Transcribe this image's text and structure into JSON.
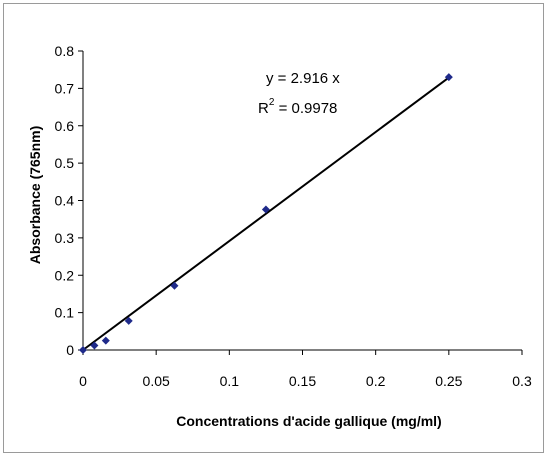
{
  "chart_data": {
    "type": "scatter",
    "xlabel": "Concentrations d'acide gallique (mg/ml)",
    "ylabel": "Absorbance (765nm)",
    "xlim": [
      0,
      0.3
    ],
    "ylim": [
      0,
      0.8
    ],
    "xticks": [
      0,
      0.05,
      0.1,
      0.15,
      0.2,
      0.25,
      0.3
    ],
    "xtick_labels": [
      "0",
      "0.05",
      "0.1",
      "0.15",
      "0.2",
      "0.25",
      "0.3"
    ],
    "yticks": [
      0,
      0.1,
      0.2,
      0.3,
      0.4,
      0.5,
      0.6,
      0.7,
      0.8
    ],
    "ytick_labels": [
      "0",
      "0.1",
      "0.2",
      "0.3",
      "0.4",
      "0.5",
      "0.6",
      "0.7",
      "0.8"
    ],
    "grid": false,
    "series": [
      {
        "x": [
          0,
          0.0078,
          0.0156,
          0.03125,
          0.0625,
          0.125,
          0.25
        ],
        "y": [
          0.0,
          0.012,
          0.025,
          0.078,
          0.172,
          0.376,
          0.73
        ],
        "marker": "diamond",
        "color": "#1f2a8a"
      }
    ],
    "trendline": {
      "slope": 2.916,
      "intercept": 0,
      "x_range": [
        0,
        0.25
      ],
      "color": "#000000"
    },
    "annotation": {
      "equation": "y = 2.916 x",
      "r2_prefix": "R",
      "r2_sup": "2",
      "r2_value": " = 0.9978"
    }
  }
}
